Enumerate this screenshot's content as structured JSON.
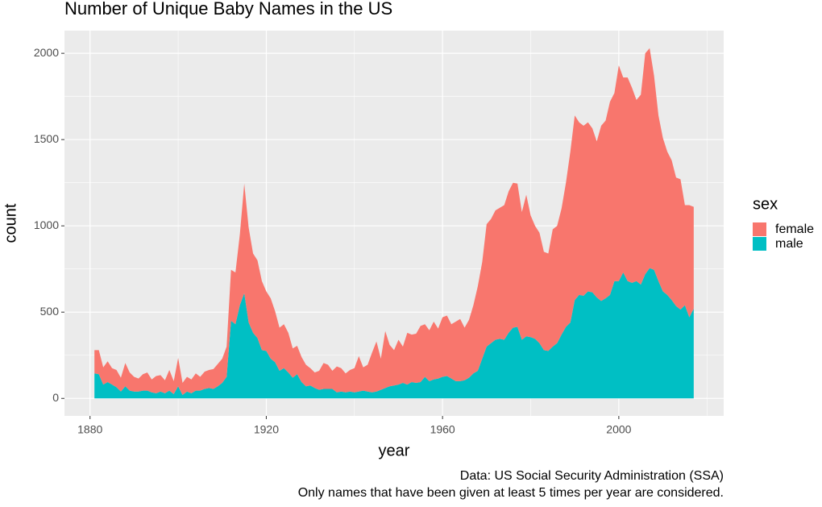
{
  "chart_data": {
    "type": "area",
    "stacked": true,
    "title": "Number of Unique Baby Names in the US",
    "caption": [
      "Data: US Social Security Administration (SSA)",
      "Only names that have been given at least 5 times per year are considered."
    ],
    "xlabel": "year",
    "ylabel": "count",
    "legend_title": "sex",
    "legend_position": "right",
    "grid": true,
    "background": "#ebebeb",
    "xlim": [
      1874.2,
      2023.8
    ],
    "xticks": [
      1880,
      1920,
      1960,
      2000
    ],
    "ylim": [
      -101.5,
      2131.5
    ],
    "yticks": [
      0,
      500,
      1000,
      1500,
      2000
    ],
    "x": [
      1881,
      1882,
      1883,
      1884,
      1885,
      1886,
      1887,
      1888,
      1889,
      1890,
      1891,
      1892,
      1893,
      1894,
      1895,
      1896,
      1897,
      1898,
      1899,
      1900,
      1901,
      1902,
      1903,
      1904,
      1905,
      1906,
      1907,
      1908,
      1909,
      1910,
      1911,
      1912,
      1913,
      1914,
      1915,
      1916,
      1917,
      1918,
      1919,
      1920,
      1921,
      1922,
      1923,
      1924,
      1925,
      1926,
      1927,
      1928,
      1929,
      1930,
      1931,
      1932,
      1933,
      1934,
      1935,
      1936,
      1937,
      1938,
      1939,
      1940,
      1941,
      1942,
      1943,
      1944,
      1945,
      1946,
      1947,
      1948,
      1949,
      1950,
      1951,
      1952,
      1953,
      1954,
      1955,
      1956,
      1957,
      1958,
      1959,
      1960,
      1961,
      1962,
      1963,
      1964,
      1965,
      1966,
      1967,
      1968,
      1969,
      1970,
      1971,
      1972,
      1973,
      1974,
      1975,
      1976,
      1977,
      1978,
      1979,
      1980,
      1981,
      1982,
      1983,
      1984,
      1985,
      1986,
      1987,
      1988,
      1989,
      1990,
      1991,
      1992,
      1993,
      1994,
      1995,
      1996,
      1997,
      1998,
      1999,
      2000,
      2001,
      2002,
      2003,
      2004,
      2005,
      2006,
      2007,
      2008,
      2009,
      2010,
      2011,
      2012,
      2013,
      2014,
      2015,
      2016,
      2017
    ],
    "series": [
      {
        "name": "female",
        "color": "#F8766D",
        "values": [
          135,
          140,
          100,
          120,
          95,
          100,
          80,
          135,
          105,
          85,
          75,
          95,
          105,
          75,
          100,
          95,
          75,
          120,
          75,
          165,
          70,
          85,
          80,
          100,
          80,
          100,
          105,
          115,
          130,
          140,
          175,
          295,
          300,
          410,
          635,
          550,
          460,
          450,
          400,
          345,
          350,
          295,
          250,
          255,
          230,
          170,
          165,
          145,
          125,
          100,
          90,
          110,
          150,
          140,
          105,
          150,
          135,
          110,
          125,
          140,
          205,
          135,
          155,
          230,
          290,
          180,
          330,
          240,
          205,
          260,
          210,
          300,
          275,
          285,
          325,
          305,
          295,
          335,
          290,
          345,
          350,
          315,
          345,
          360,
          305,
          335,
          395,
          490,
          560,
          710,
          720,
          750,
          760,
          780,
          820,
          840,
          830,
          740,
          820,
          705,
          655,
          640,
          570,
          565,
          680,
          680,
          730,
          835,
          990,
          1070,
          1000,
          985,
          980,
          950,
          905,
          1015,
          1030,
          1120,
          1090,
          1250,
          1130,
          1180,
          1130,
          1050,
          1100,
          1280,
          1275,
          1125,
          960,
          890,
          830,
          810,
          745,
          755,
          580,
          650,
          590
        ]
      },
      {
        "name": "male",
        "color": "#00BFC4",
        "values": [
          145,
          140,
          80,
          95,
          80,
          65,
          40,
          70,
          45,
          40,
          40,
          45,
          45,
          35,
          30,
          40,
          30,
          45,
          25,
          70,
          20,
          40,
          30,
          45,
          45,
          55,
          60,
          55,
          70,
          90,
          125,
          450,
          430,
          540,
          610,
          440,
          380,
          350,
          280,
          275,
          230,
          210,
          160,
          175,
          150,
          120,
          140,
          95,
          70,
          75,
          60,
          50,
          55,
          55,
          55,
          35,
          40,
          35,
          40,
          35,
          40,
          45,
          40,
          35,
          40,
          50,
          60,
          70,
          75,
          80,
          90,
          80,
          95,
          90,
          95,
          125,
          100,
          110,
          115,
          125,
          130,
          115,
          100,
          100,
          105,
          120,
          145,
          160,
          230,
          300,
          320,
          340,
          345,
          340,
          380,
          410,
          415,
          340,
          360,
          355,
          345,
          320,
          280,
          275,
          300,
          320,
          370,
          415,
          440,
          570,
          600,
          595,
          620,
          615,
          585,
          565,
          580,
          600,
          680,
          680,
          730,
          680,
          670,
          680,
          660,
          720,
          755,
          745,
          680,
          620,
          600,
          570,
          535,
          515,
          540,
          470,
          520
        ]
      }
    ]
  }
}
